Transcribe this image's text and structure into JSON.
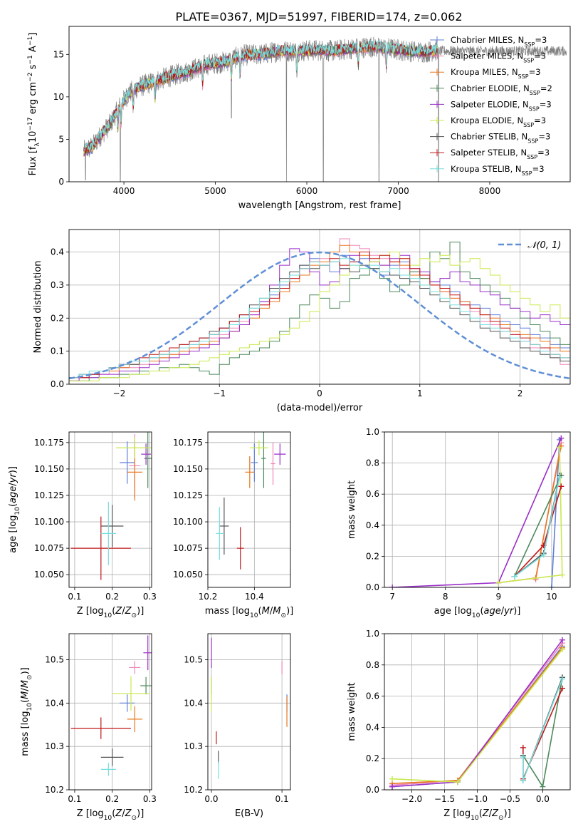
{
  "figure_title": "PLATE=0367, MJD=51997, FIBERID=174, z=0.062",
  "colors": {
    "series": [
      "#5f7fd6",
      "#ee85b8",
      "#e8781e",
      "#4c8a5c",
      "#9a2fc8",
      "#c9e84e",
      "#555555",
      "#c0181a",
      "#78dede"
    ],
    "gaussian": "#5f8fd6",
    "data": "#808080",
    "grid": "#b0b0b0"
  },
  "series_names": [
    "Chabrier MILES, N_SSP=3",
    "Salpeter MILES, N_SSP=3",
    "Kroupa MILES, N_SSP=3",
    "Chabrier ELODIE, N_SSP=2",
    "Salpeter ELODIE, N_SSP=3",
    "Kroupa ELODIE, N_SSP=3",
    "Chabrier STELIB, N_SSP=3",
    "Salpeter STELIB, N_SSP=3",
    "Kroupa STELIB, N_SSP=3"
  ],
  "chart_data": [
    {
      "id": "spectrum",
      "type": "line",
      "xlabel": "wavelength [Angstrom, rest frame]",
      "ylabel": "Flux [f_λ 10^-17 erg cm^-2 s^-1 A^-1]",
      "xlim": [
        3400,
        8880
      ],
      "ylim": [
        0,
        18.3
      ],
      "xticks": [
        4000,
        5000,
        6000,
        7000,
        8000
      ],
      "yticks": [
        0,
        5,
        10,
        15
      ],
      "grid": false,
      "legend": "top-right",
      "continuum": {
        "x": [
          3560,
          3650,
          3750,
          3850,
          3950,
          4050,
          4150,
          4300,
          4500,
          4700,
          4900,
          5100,
          5300,
          5500,
          5700,
          5900,
          6100,
          6300,
          6500,
          6700,
          6900,
          7100,
          7300,
          7430
        ],
        "y": [
          3.6,
          4.1,
          5.5,
          6.8,
          8.8,
          10.4,
          11.1,
          11.7,
          12.4,
          13.0,
          13.8,
          14.1,
          14.9,
          15.0,
          15.4,
          15.4,
          15.5,
          15.4,
          15.7,
          15.9,
          15.7,
          15.4,
          15.3,
          15.5
        ]
      },
      "data_extent": [
        3560,
        8840
      ],
      "model_extent": [
        3560,
        7430
      ]
    },
    {
      "id": "residuals",
      "type": "step",
      "xlabel": "(data-model)/error",
      "ylabel": "Normed distribution",
      "xlim": [
        -2.5,
        2.5
      ],
      "ylim": [
        0,
        0.468
      ],
      "xticks": [
        -2,
        -1,
        0,
        1,
        2
      ],
      "yticks": [
        0.0,
        0.1,
        0.2,
        0.3,
        0.4
      ],
      "grid": true,
      "legend": "top-right",
      "legend_label": "N(0,1)",
      "bin_width": 0.1,
      "histograms": [
        [
          0.02,
          0.03,
          0.03,
          0.04,
          0.05,
          0.05,
          0.06,
          0.07,
          0.08,
          0.08,
          0.1,
          0.11,
          0.12,
          0.14,
          0.15,
          0.17,
          0.19,
          0.21,
          0.23,
          0.25,
          0.27,
          0.3,
          0.33,
          0.36,
          0.38,
          0.36,
          0.34,
          0.39,
          0.37,
          0.38,
          0.35,
          0.33,
          0.36,
          0.37,
          0.34,
          0.33,
          0.31,
          0.3,
          0.28,
          0.25,
          0.24,
          0.23,
          0.21,
          0.19,
          0.18,
          0.17,
          0.15,
          0.14,
          0.12,
          0.11
        ],
        [
          0.01,
          0.02,
          0.03,
          0.03,
          0.04,
          0.05,
          0.05,
          0.06,
          0.07,
          0.08,
          0.09,
          0.1,
          0.11,
          0.12,
          0.14,
          0.15,
          0.17,
          0.19,
          0.21,
          0.24,
          0.26,
          0.29,
          0.32,
          0.35,
          0.37,
          0.38,
          0.4,
          0.44,
          0.42,
          0.41,
          0.39,
          0.38,
          0.37,
          0.35,
          0.34,
          0.32,
          0.3,
          0.28,
          0.26,
          0.24,
          0.22,
          0.19,
          0.18,
          0.16,
          0.15,
          0.13,
          0.11,
          0.1,
          0.08,
          0.06
        ],
        [
          0.02,
          0.02,
          0.03,
          0.04,
          0.04,
          0.05,
          0.06,
          0.07,
          0.07,
          0.08,
          0.09,
          0.1,
          0.11,
          0.12,
          0.13,
          0.14,
          0.16,
          0.18,
          0.2,
          0.23,
          0.25,
          0.28,
          0.31,
          0.33,
          0.36,
          0.37,
          0.4,
          0.42,
          0.4,
          0.39,
          0.37,
          0.36,
          0.37,
          0.36,
          0.33,
          0.32,
          0.3,
          0.28,
          0.26,
          0.25,
          0.23,
          0.21,
          0.2,
          0.18,
          0.16,
          0.15,
          0.14,
          0.13,
          0.11,
          0.1
        ],
        [
          0.01,
          0.01,
          0.02,
          0.02,
          0.02,
          0.03,
          0.03,
          0.04,
          0.04,
          0.05,
          0.05,
          0.06,
          0.05,
          0.04,
          0.03,
          0.06,
          0.08,
          0.09,
          0.1,
          0.11,
          0.13,
          0.16,
          0.2,
          0.24,
          0.27,
          0.26,
          0.23,
          0.25,
          0.32,
          0.33,
          0.35,
          0.32,
          0.28,
          0.3,
          0.34,
          0.32,
          0.4,
          0.38,
          0.43,
          0.34,
          0.32,
          0.3,
          0.28,
          0.26,
          0.23,
          0.2,
          0.18,
          0.16,
          0.14,
          0.12
        ],
        [
          0.01,
          0.02,
          0.02,
          0.03,
          0.03,
          0.04,
          0.04,
          0.05,
          0.06,
          0.07,
          0.08,
          0.09,
          0.1,
          0.11,
          0.12,
          0.14,
          0.16,
          0.18,
          0.21,
          0.25,
          0.3,
          0.36,
          0.41,
          0.4,
          0.34,
          0.3,
          0.31,
          0.35,
          0.39,
          0.4,
          0.37,
          0.36,
          0.38,
          0.39,
          0.35,
          0.34,
          0.31,
          0.32,
          0.34,
          0.31,
          0.3,
          0.28,
          0.27,
          0.24,
          0.23,
          0.22,
          0.2,
          0.21,
          0.19,
          0.18
        ],
        [
          0.01,
          0.01,
          0.01,
          0.02,
          0.02,
          0.02,
          0.03,
          0.03,
          0.04,
          0.04,
          0.05,
          0.05,
          0.06,
          0.07,
          0.08,
          0.09,
          0.1,
          0.11,
          0.12,
          0.13,
          0.14,
          0.15,
          0.17,
          0.19,
          0.22,
          0.28,
          0.3,
          0.33,
          0.36,
          0.35,
          0.37,
          0.39,
          0.4,
          0.38,
          0.36,
          0.38,
          0.37,
          0.39,
          0.36,
          0.37,
          0.38,
          0.35,
          0.33,
          0.3,
          0.28,
          0.26,
          0.24,
          0.22,
          0.24,
          0.2
        ],
        [
          0.02,
          0.03,
          0.03,
          0.04,
          0.05,
          0.06,
          0.06,
          0.07,
          0.08,
          0.09,
          0.1,
          0.12,
          0.13,
          0.14,
          0.16,
          0.17,
          0.19,
          0.21,
          0.24,
          0.26,
          0.29,
          0.32,
          0.34,
          0.36,
          0.35,
          0.36,
          0.37,
          0.35,
          0.34,
          0.36,
          0.35,
          0.34,
          0.33,
          0.32,
          0.31,
          0.29,
          0.27,
          0.25,
          0.23,
          0.21,
          0.19,
          0.17,
          0.16,
          0.14,
          0.13,
          0.11,
          0.1,
          0.09,
          0.08,
          0.07
        ],
        [
          0.02,
          0.02,
          0.03,
          0.04,
          0.05,
          0.06,
          0.07,
          0.08,
          0.09,
          0.1,
          0.11,
          0.12,
          0.13,
          0.14,
          0.15,
          0.17,
          0.19,
          0.21,
          0.22,
          0.24,
          0.26,
          0.29,
          0.32,
          0.35,
          0.37,
          0.36,
          0.38,
          0.36,
          0.37,
          0.4,
          0.38,
          0.39,
          0.37,
          0.38,
          0.35,
          0.33,
          0.3,
          0.29,
          0.27,
          0.24,
          0.23,
          0.21,
          0.19,
          0.17,
          0.15,
          0.14,
          0.12,
          0.11,
          0.09,
          0.08
        ],
        [
          0.02,
          0.03,
          0.04,
          0.04,
          0.05,
          0.06,
          0.07,
          0.07,
          0.08,
          0.09,
          0.1,
          0.11,
          0.12,
          0.13,
          0.15,
          0.16,
          0.18,
          0.2,
          0.23,
          0.26,
          0.28,
          0.31,
          0.33,
          0.35,
          0.37,
          0.36,
          0.37,
          0.38,
          0.36,
          0.35,
          0.36,
          0.34,
          0.35,
          0.33,
          0.32,
          0.3,
          0.28,
          0.26,
          0.24,
          0.22,
          0.2,
          0.18,
          0.17,
          0.16,
          0.14,
          0.13,
          0.12,
          0.1,
          0.09,
          0.08
        ]
      ]
    },
    {
      "id": "age_vs_Z",
      "type": "scatter",
      "xlabel": "Z [log10(Z/Z_sun)]",
      "ylabel": "age [log10(age/yr)]",
      "xlim": [
        0.085,
        0.305
      ],
      "ylim": [
        10.038,
        10.185
      ],
      "xticks": [
        0.1,
        0.2,
        0.3
      ],
      "yticks": [
        10.05,
        10.075,
        10.1,
        10.125,
        10.15,
        10.175
      ],
      "grid": true,
      "points": [
        {
          "x": 0.24,
          "xerr": 0.02,
          "y": 10.156,
          "yerr": 0.02
        },
        {
          "x": 0.26,
          "xerr": 0.015,
          "y": 10.153,
          "yerr": 0.03
        },
        {
          "x": 0.26,
          "xerr": 0.02,
          "y": 10.147,
          "yerr": 0.027
        },
        {
          "x": 0.295,
          "xerr": 0.01,
          "y": 10.16,
          "yerr": 0.028
        },
        {
          "x": 0.29,
          "xerr": 0.013,
          "y": 10.164,
          "yerr": 0.01
        },
        {
          "x": 0.26,
          "xerr": 0.05,
          "y": 10.17,
          "yerr": 0.01
        },
        {
          "x": 0.2,
          "xerr": 0.03,
          "y": 10.096,
          "yerr": 0.02
        },
        {
          "x": 0.17,
          "xerr": 0.08,
          "y": 10.075,
          "yerr": 0.03
        },
        {
          "x": 0.19,
          "xerr": 0.02,
          "y": 10.089,
          "yerr": 0.03
        }
      ]
    },
    {
      "id": "age_vs_mass",
      "type": "scatter",
      "xlabel": "mass [log10(M/M_sun)]",
      "ylabel": "",
      "xlim": [
        10.2,
        10.555
      ],
      "ylim": [
        10.038,
        10.185
      ],
      "xticks": [
        10.2,
        10.4
      ],
      "yticks": [
        10.05,
        10.075,
        10.1,
        10.125,
        10.15,
        10.175
      ],
      "grid": true,
      "points": [
        {
          "x": 10.4,
          "xerr": 0.015,
          "y": 10.156,
          "yerr": 0.018
        },
        {
          "x": 10.48,
          "xerr": 0.01,
          "y": 10.155,
          "yerr": 0.02
        },
        {
          "x": 10.38,
          "xerr": 0.02,
          "y": 10.147,
          "yerr": 0.015
        },
        {
          "x": 10.44,
          "xerr": 0.01,
          "y": 10.16,
          "yerr": 0.028
        },
        {
          "x": 10.51,
          "xerr": 0.025,
          "y": 10.164,
          "yerr": 0.01
        },
        {
          "x": 10.42,
          "xerr": 0.04,
          "y": 10.17,
          "yerr": 0.007
        },
        {
          "x": 10.27,
          "xerr": 0.02,
          "y": 10.096,
          "yerr": 0.027
        },
        {
          "x": 10.34,
          "xerr": 0.015,
          "y": 10.075,
          "yerr": 0.02
        },
        {
          "x": 10.25,
          "xerr": 0.015,
          "y": 10.089,
          "yerr": 0.025
        }
      ]
    },
    {
      "id": "massweight_vs_age",
      "type": "line",
      "xlabel": "age [log10(age/yr)]",
      "ylabel": "mass weight",
      "xlim": [
        6.85,
        10.35
      ],
      "ylim": [
        0,
        1.0
      ],
      "xticks": [
        7,
        8,
        9,
        10
      ],
      "yticks": [
        0.0,
        0.2,
        0.4,
        0.6,
        0.8,
        1.0
      ],
      "grid": true,
      "series": [
        {
          "x": [
            10.0,
            10.15
          ],
          "y": [
            0.0,
            0.95
          ]
        },
        {
          "x": [
            9.7,
            10.18
          ],
          "y": [
            0.05,
            0.93
          ]
        },
        {
          "x": [
            9.0,
            9.7,
            10.18
          ],
          "y": [
            0.03,
            0.06,
            0.91
          ]
        },
        {
          "x": [
            9.3,
            10.18
          ],
          "y": [
            0.07,
            0.72
          ]
        },
        {
          "x": [
            7.0,
            9.0,
            10.18
          ],
          "y": [
            0.0,
            0.03,
            0.96
          ]
        },
        {
          "x": [
            9.0,
            10.2,
            10.15
          ],
          "y": [
            0.03,
            0.08,
            0.9
          ]
        },
        {
          "x": [
            9.3,
            9.85,
            10.15
          ],
          "y": [
            0.07,
            0.22,
            0.72
          ]
        },
        {
          "x": [
            9.3,
            9.85,
            10.18
          ],
          "y": [
            0.07,
            0.27,
            0.65
          ]
        },
        {
          "x": [
            9.3,
            9.85,
            10.15
          ],
          "y": [
            0.07,
            0.21,
            0.71
          ]
        }
      ]
    },
    {
      "id": "mass_vs_Z",
      "type": "scatter",
      "xlabel": "Z [log10(Z/Z_sun)]",
      "ylabel": "mass [log10(M/M_sun)]",
      "xlim": [
        0.085,
        0.305
      ],
      "ylim": [
        10.2,
        10.56
      ],
      "xticks": [
        0.1,
        0.2,
        0.3
      ],
      "yticks": [
        10.2,
        10.3,
        10.4,
        10.5
      ],
      "grid": true,
      "points": [
        {
          "x": 0.24,
          "xerr": 0.02,
          "y": 10.4,
          "yerr": 0.02
        },
        {
          "x": 0.26,
          "xerr": 0.015,
          "y": 10.482,
          "yerr": 0.015
        },
        {
          "x": 0.26,
          "xerr": 0.02,
          "y": 10.363,
          "yerr": 0.03
        },
        {
          "x": 0.29,
          "xerr": 0.015,
          "y": 10.44,
          "yerr": 0.02
        },
        {
          "x": 0.295,
          "xerr": 0.012,
          "y": 10.516,
          "yerr": 0.04
        },
        {
          "x": 0.25,
          "xerr": 0.05,
          "y": 10.422,
          "yerr": 0.04
        },
        {
          "x": 0.2,
          "xerr": 0.03,
          "y": 10.275,
          "yerr": 0.02
        },
        {
          "x": 0.17,
          "xerr": 0.08,
          "y": 10.342,
          "yerr": 0.025
        },
        {
          "x": 0.19,
          "xerr": 0.02,
          "y": 10.247,
          "yerr": 0.015
        }
      ]
    },
    {
      "id": "mass_vs_EBV",
      "type": "scatter",
      "xlabel": "E(B-V)",
      "ylabel": "",
      "xlim": [
        -0.005,
        0.112
      ],
      "ylim": [
        10.2,
        10.56
      ],
      "xticks": [
        0.0,
        0.1
      ],
      "yticks": [
        10.2,
        10.3,
        10.4,
        10.5
      ],
      "grid": true,
      "points": [
        {
          "x": 0.107,
          "xerr": 0.0,
          "y": 10.4,
          "yerr": 0.02
        },
        {
          "x": 0.1,
          "xerr": 0.0,
          "y": 10.482,
          "yerr": 0.015
        },
        {
          "x": 0.107,
          "xerr": 0.0,
          "y": 10.38,
          "yerr": 0.035
        },
        {
          "x": 0.0,
          "xerr": 0.0,
          "y": 10.44,
          "yerr": 0.02
        },
        {
          "x": 0.0,
          "xerr": 0.0,
          "y": 10.516,
          "yerr": 0.035
        },
        {
          "x": 0.0,
          "xerr": 0.0,
          "y": 10.42,
          "yerr": 0.04
        },
        {
          "x": 0.01,
          "xerr": 0.0,
          "y": 10.275,
          "yerr": 0.015
        },
        {
          "x": 0.007,
          "xerr": 0.0,
          "y": 10.32,
          "yerr": 0.015
        },
        {
          "x": 0.01,
          "xerr": 0.0,
          "y": 10.245,
          "yerr": 0.02
        }
      ]
    },
    {
      "id": "massweight_vs_Z",
      "type": "line",
      "xlabel": "Z [log10(Z/Z_sun)]",
      "ylabel": "mass weight",
      "xlim": [
        -2.42,
        0.42
      ],
      "ylim": [
        0,
        1.0
      ],
      "xticks": [
        -2.0,
        -1.5,
        -1.0,
        -0.5,
        0.0
      ],
      "yticks": [
        0.0,
        0.2,
        0.4,
        0.6,
        0.8,
        1.0
      ],
      "grid": true,
      "series": [
        {
          "x": [
            -2.3,
            -1.3,
            0.3
          ],
          "y": [
            0.02,
            0.05,
            0.92
          ]
        },
        {
          "x": [
            -2.3,
            -1.3,
            0.3
          ],
          "y": [
            0.03,
            0.06,
            0.94
          ]
        },
        {
          "x": [
            -2.3,
            -1.3,
            0.3
          ],
          "y": [
            0.04,
            0.06,
            0.91
          ]
        },
        {
          "x": [
            -0.3,
            0.0,
            0.3
          ],
          "y": [
            0.22,
            0.02,
            0.72
          ]
        },
        {
          "x": [
            -2.3,
            -1.3,
            0.3
          ],
          "y": [
            0.02,
            0.05,
            0.96
          ]
        },
        {
          "x": [
            -2.3,
            -1.3,
            0.3
          ],
          "y": [
            0.07,
            0.05,
            0.9
          ]
        },
        {
          "x": [
            -0.3,
            -0.3,
            0.3
          ],
          "y": [
            0.22,
            0.06,
            0.72
          ]
        },
        {
          "x": [
            -0.3,
            -0.3,
            0.3
          ],
          "y": [
            0.27,
            0.07,
            0.65
          ]
        },
        {
          "x": [
            -0.3,
            -0.3,
            0.3
          ],
          "y": [
            0.21,
            0.06,
            0.71
          ]
        }
      ]
    }
  ]
}
